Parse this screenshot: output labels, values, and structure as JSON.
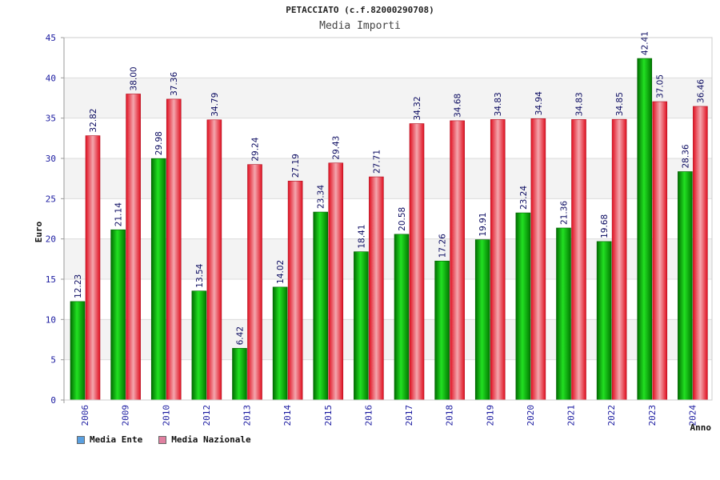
{
  "chart_data": {
    "type": "bar",
    "title": "PETACCIATO (c.f.82000290708)",
    "subtitle": "Media Importi",
    "xlabel": "Anno",
    "ylabel": "Euro",
    "ylim": [
      0,
      45
    ],
    "yticks": [
      0,
      5,
      10,
      15,
      20,
      25,
      30,
      35,
      40,
      45
    ],
    "grid": true,
    "legend_position": "bottom-left",
    "categories": [
      "2006",
      "2009",
      "2010",
      "2012",
      "2013",
      "2014",
      "2015",
      "2016",
      "2017",
      "2018",
      "2019",
      "2020",
      "2021",
      "2022",
      "2023",
      "2024"
    ],
    "series": [
      {
        "name": "Media Ente",
        "color": "#00b000",
        "legend_color": "#5aa0e0",
        "values": [
          12.23,
          21.14,
          29.98,
          13.54,
          6.42,
          14.02,
          23.34,
          18.41,
          20.58,
          17.26,
          19.91,
          23.24,
          21.36,
          19.68,
          42.41,
          28.36
        ],
        "labels": [
          "12.23",
          "21.14",
          "29.98",
          "13.54",
          "6.42",
          "14.02",
          "23.34",
          "18.41",
          "20.58",
          "17.26",
          "19.91",
          "23.24",
          "21.36",
          "19.68",
          "42.41",
          "28.36"
        ]
      },
      {
        "name": "Media Nazionale",
        "color": "#e02030",
        "legend_color": "#e080a0",
        "values": [
          32.82,
          38.0,
          37.36,
          34.79,
          29.24,
          27.19,
          29.43,
          27.71,
          34.32,
          34.68,
          34.83,
          34.94,
          34.83,
          34.85,
          37.05,
          36.46
        ],
        "labels": [
          "32.82",
          "38.00",
          "37.36",
          "34.79",
          "29.24",
          "27.19",
          "29.43",
          "27.71",
          "34.32",
          "34.68",
          "34.83",
          "34.94",
          "34.83",
          "34.85",
          "37.05",
          "36.46"
        ]
      }
    ]
  }
}
